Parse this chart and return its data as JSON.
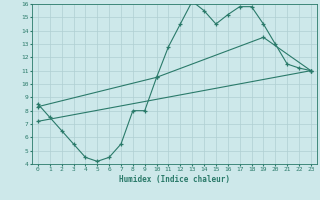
{
  "line1_x": [
    0,
    1,
    2,
    3,
    4,
    5,
    6,
    7,
    8,
    9,
    10,
    11,
    12,
    13,
    14,
    15,
    16,
    17,
    18,
    19,
    20,
    21,
    22,
    23
  ],
  "line1_y": [
    8.5,
    7.5,
    6.5,
    5.5,
    4.5,
    4.2,
    4.5,
    5.5,
    8.0,
    8.0,
    10.5,
    12.8,
    14.5,
    16.2,
    15.5,
    14.5,
    15.2,
    15.8,
    15.8,
    14.5,
    13.0,
    11.5,
    11.2,
    11.0
  ],
  "line2_x": [
    0,
    10,
    19,
    23
  ],
  "line2_y": [
    8.3,
    10.5,
    13.5,
    11.0
  ],
  "line3_x": [
    0,
    23
  ],
  "line3_y": [
    7.2,
    11.0
  ],
  "line_color": "#2a7a6a",
  "bg_color": "#cde8ea",
  "grid_color": "#b0cfd2",
  "xlabel": "Humidex (Indice chaleur)",
  "xlim": [
    -0.5,
    23.5
  ],
  "ylim": [
    4,
    16
  ],
  "xticks": [
    0,
    1,
    2,
    3,
    4,
    5,
    6,
    7,
    8,
    9,
    10,
    11,
    12,
    13,
    14,
    15,
    16,
    17,
    18,
    19,
    20,
    21,
    22,
    23
  ],
  "yticks": [
    4,
    5,
    6,
    7,
    8,
    9,
    10,
    11,
    12,
    13,
    14,
    15,
    16
  ]
}
